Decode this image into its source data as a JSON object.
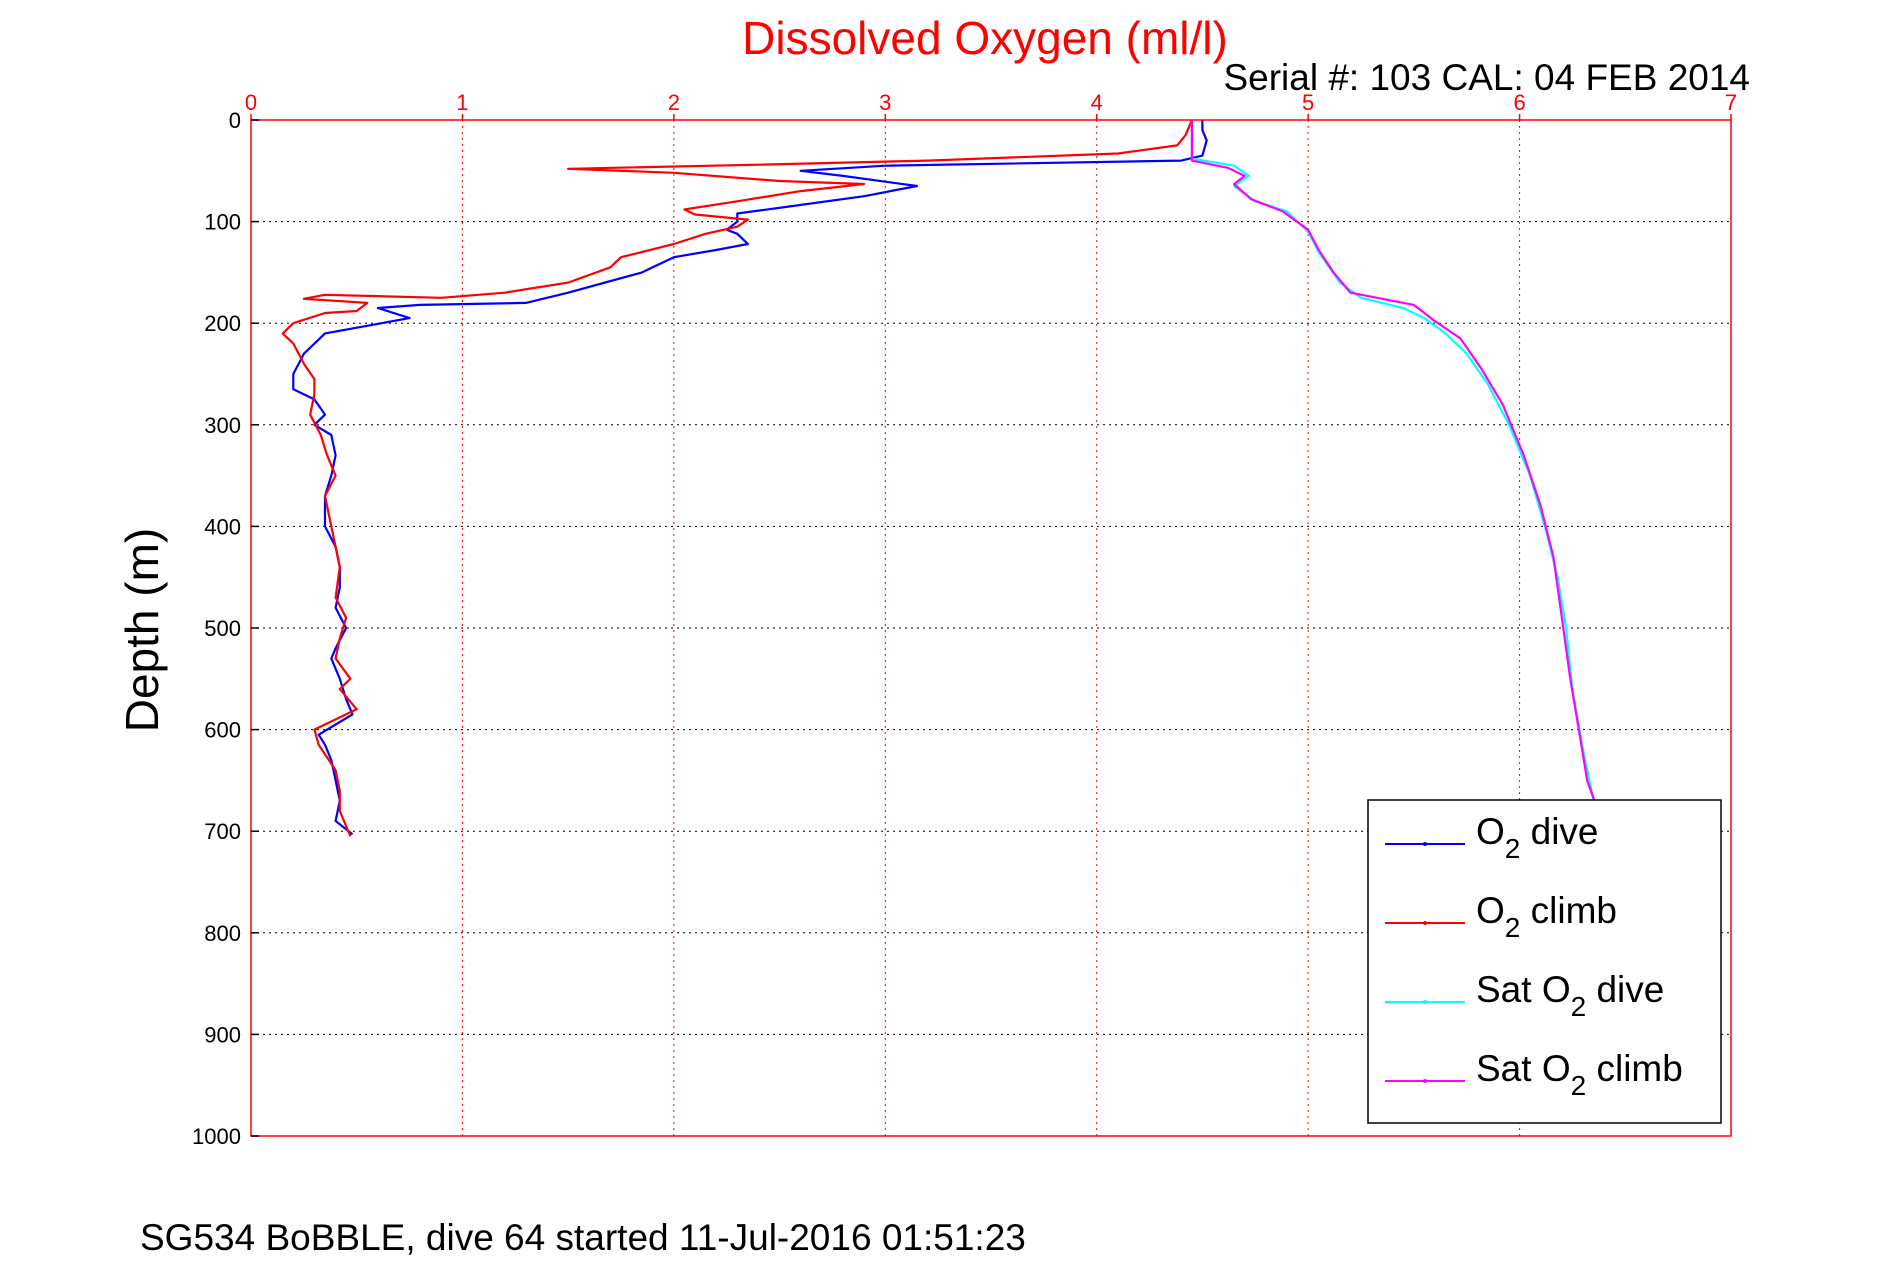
{
  "chart_data": {
    "type": "line",
    "title": "Dissolved Oxygen (ml/l)",
    "subtitle": "Serial #: 103  CAL: 04 FEB 2014",
    "xlabel": "",
    "ylabel": "Depth (m)",
    "xlim": [
      0,
      7
    ],
    "ylim": [
      0,
      1000
    ],
    "y_reversed": true,
    "x_axis_position": "top",
    "grid": true,
    "x_ticks": [
      "0",
      "1",
      "2",
      "3",
      "4",
      "5",
      "6",
      "7"
    ],
    "y_ticks": [
      "0",
      "100",
      "200",
      "300",
      "400",
      "500",
      "600",
      "700",
      "800",
      "900",
      "1000"
    ],
    "legend_position": "bottom-right",
    "footer": "SG534 BoBBLE, dive 64 started 11-Jul-2016 01:51:23",
    "colors": {
      "title": "#ff0000",
      "axis": "#ff0000",
      "grid_x": "#ff0000",
      "grid_y": "#000000"
    },
    "series": [
      {
        "name": "O₂ dive",
        "legend_main": "O",
        "legend_sub": "2",
        "legend_rest": " dive",
        "color": "#0000ff",
        "points": [
          [
            4.5,
            0
          ],
          [
            4.5,
            10
          ],
          [
            4.52,
            20
          ],
          [
            4.5,
            35
          ],
          [
            4.4,
            40
          ],
          [
            3.0,
            45
          ],
          [
            2.6,
            50
          ],
          [
            2.8,
            55
          ],
          [
            3.15,
            65
          ],
          [
            2.9,
            75
          ],
          [
            2.55,
            85
          ],
          [
            2.3,
            92
          ],
          [
            2.3,
            100
          ],
          [
            2.25,
            108
          ],
          [
            2.3,
            112
          ],
          [
            2.35,
            122
          ],
          [
            2.2,
            128
          ],
          [
            2.0,
            135
          ],
          [
            1.9,
            145
          ],
          [
            1.85,
            150
          ],
          [
            1.5,
            170
          ],
          [
            1.3,
            180
          ],
          [
            0.8,
            182
          ],
          [
            0.6,
            185
          ],
          [
            0.75,
            195
          ],
          [
            0.35,
            210
          ],
          [
            0.25,
            230
          ],
          [
            0.2,
            250
          ],
          [
            0.2,
            265
          ],
          [
            0.3,
            275
          ],
          [
            0.35,
            290
          ],
          [
            0.3,
            300
          ],
          [
            0.38,
            310
          ],
          [
            0.4,
            330
          ],
          [
            0.38,
            350
          ],
          [
            0.35,
            370
          ],
          [
            0.35,
            400
          ],
          [
            0.4,
            420
          ],
          [
            0.42,
            440
          ],
          [
            0.42,
            460
          ],
          [
            0.4,
            480
          ],
          [
            0.45,
            500
          ],
          [
            0.4,
            520
          ],
          [
            0.38,
            530
          ],
          [
            0.42,
            550
          ],
          [
            0.45,
            570
          ],
          [
            0.48,
            585
          ],
          [
            0.4,
            595
          ],
          [
            0.32,
            605
          ],
          [
            0.35,
            615
          ],
          [
            0.38,
            630
          ],
          [
            0.4,
            650
          ],
          [
            0.42,
            670
          ],
          [
            0.4,
            690
          ],
          [
            0.48,
            703
          ]
        ]
      },
      {
        "name": "O₂ climb",
        "legend_main": "O",
        "legend_sub": "2",
        "legend_rest": " climb",
        "color": "#ff0000",
        "points": [
          [
            4.45,
            0
          ],
          [
            4.42,
            15
          ],
          [
            4.38,
            25
          ],
          [
            4.1,
            33
          ],
          [
            3.2,
            40
          ],
          [
            2.4,
            44
          ],
          [
            1.5,
            48
          ],
          [
            2.0,
            52
          ],
          [
            2.5,
            60
          ],
          [
            2.9,
            63
          ],
          [
            2.6,
            70
          ],
          [
            2.3,
            80
          ],
          [
            2.05,
            88
          ],
          [
            2.1,
            93
          ],
          [
            2.35,
            98
          ],
          [
            2.3,
            105
          ],
          [
            2.15,
            112
          ],
          [
            2.0,
            122
          ],
          [
            1.75,
            135
          ],
          [
            1.7,
            145
          ],
          [
            1.5,
            160
          ],
          [
            1.2,
            170
          ],
          [
            0.9,
            175
          ],
          [
            0.35,
            172
          ],
          [
            0.25,
            176
          ],
          [
            0.55,
            180
          ],
          [
            0.5,
            188
          ],
          [
            0.35,
            190
          ],
          [
            0.2,
            200
          ],
          [
            0.15,
            210
          ],
          [
            0.2,
            220
          ],
          [
            0.25,
            240
          ],
          [
            0.3,
            255
          ],
          [
            0.3,
            270
          ],
          [
            0.28,
            290
          ],
          [
            0.33,
            310
          ],
          [
            0.36,
            330
          ],
          [
            0.4,
            350
          ],
          [
            0.35,
            370
          ],
          [
            0.38,
            400
          ],
          [
            0.4,
            420
          ],
          [
            0.42,
            440
          ],
          [
            0.4,
            470
          ],
          [
            0.45,
            490
          ],
          [
            0.42,
            510
          ],
          [
            0.4,
            530
          ],
          [
            0.47,
            550
          ],
          [
            0.42,
            560
          ],
          [
            0.5,
            580
          ],
          [
            0.4,
            590
          ],
          [
            0.3,
            600
          ],
          [
            0.32,
            615
          ],
          [
            0.4,
            640
          ],
          [
            0.42,
            660
          ],
          [
            0.42,
            680
          ],
          [
            0.45,
            695
          ],
          [
            0.47,
            705
          ]
        ]
      },
      {
        "name": "Sat O₂ dive",
        "legend_main": "Sat O",
        "legend_sub": "2",
        "legend_rest": " dive",
        "color": "#00ffff",
        "points": [
          [
            4.45,
            0
          ],
          [
            4.45,
            20
          ],
          [
            4.45,
            38
          ],
          [
            4.65,
            45
          ],
          [
            4.72,
            55
          ],
          [
            4.65,
            65
          ],
          [
            4.75,
            80
          ],
          [
            4.9,
            90
          ],
          [
            5.0,
            110
          ],
          [
            5.05,
            130
          ],
          [
            5.15,
            160
          ],
          [
            5.25,
            175
          ],
          [
            5.45,
            185
          ],
          [
            5.55,
            195
          ],
          [
            5.65,
            210
          ],
          [
            5.75,
            230
          ],
          [
            5.85,
            260
          ],
          [
            5.95,
            300
          ],
          [
            6.05,
            350
          ],
          [
            6.12,
            400
          ],
          [
            6.18,
            450
          ],
          [
            6.22,
            500
          ],
          [
            6.25,
            560
          ],
          [
            6.3,
            620
          ],
          [
            6.34,
            660
          ],
          [
            6.36,
            674
          ]
        ]
      },
      {
        "name": "Sat O₂ climb",
        "legend_main": "Sat O",
        "legend_sub": "2",
        "legend_rest": " climb",
        "color": "#ff00ff",
        "points": [
          [
            4.45,
            0
          ],
          [
            4.45,
            20
          ],
          [
            4.45,
            40
          ],
          [
            4.62,
            47
          ],
          [
            4.7,
            55
          ],
          [
            4.65,
            63
          ],
          [
            4.73,
            78
          ],
          [
            4.88,
            90
          ],
          [
            5.0,
            108
          ],
          [
            5.05,
            128
          ],
          [
            5.12,
            150
          ],
          [
            5.2,
            170
          ],
          [
            5.4,
            178
          ],
          [
            5.5,
            182
          ],
          [
            5.6,
            198
          ],
          [
            5.72,
            215
          ],
          [
            5.82,
            245
          ],
          [
            5.92,
            280
          ],
          [
            6.02,
            330
          ],
          [
            6.1,
            380
          ],
          [
            6.16,
            430
          ],
          [
            6.2,
            490
          ],
          [
            6.24,
            550
          ],
          [
            6.28,
            600
          ],
          [
            6.32,
            650
          ],
          [
            6.36,
            674
          ]
        ]
      }
    ]
  }
}
